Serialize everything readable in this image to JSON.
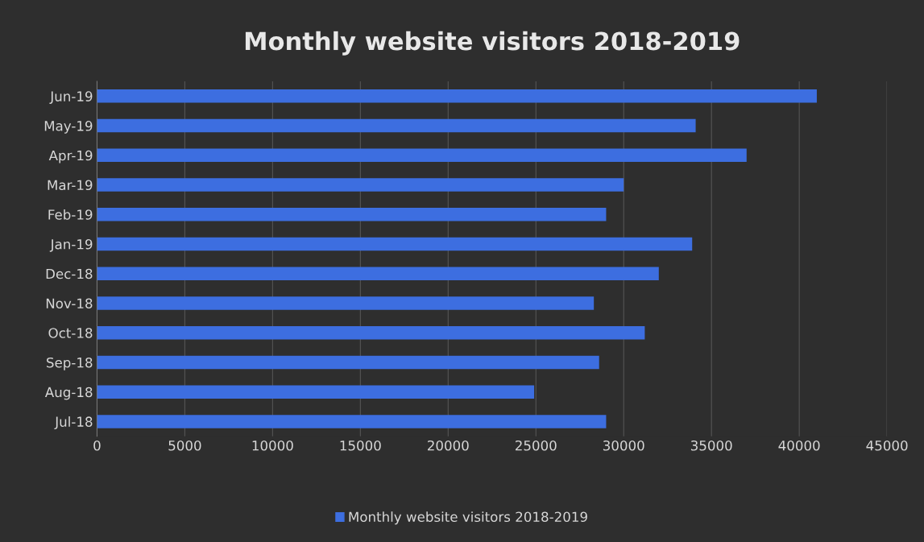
{
  "chart_data": {
    "type": "bar",
    "orientation": "horizontal",
    "title": "Monthly website visitors 2018-2019",
    "categories": [
      "Jun-19",
      "May-19",
      "Apr-19",
      "Mar-19",
      "Feb-19",
      "Jan-19",
      "Dec-18",
      "Nov-18",
      "Oct-18",
      "Sep-18",
      "Aug-18",
      "Jul-18"
    ],
    "series": [
      {
        "name": "Monthly website visitors 2018-2019",
        "color": "#3d6ee0",
        "values": [
          41000,
          34100,
          37000,
          30000,
          29000,
          33900,
          32000,
          28300,
          31200,
          28600,
          24900,
          29000
        ]
      }
    ],
    "xlim": [
      0,
      45000
    ],
    "xticks": [
      0,
      5000,
      10000,
      15000,
      20000,
      25000,
      30000,
      35000,
      40000,
      45000
    ],
    "grid": "x",
    "legend": "bottom"
  }
}
